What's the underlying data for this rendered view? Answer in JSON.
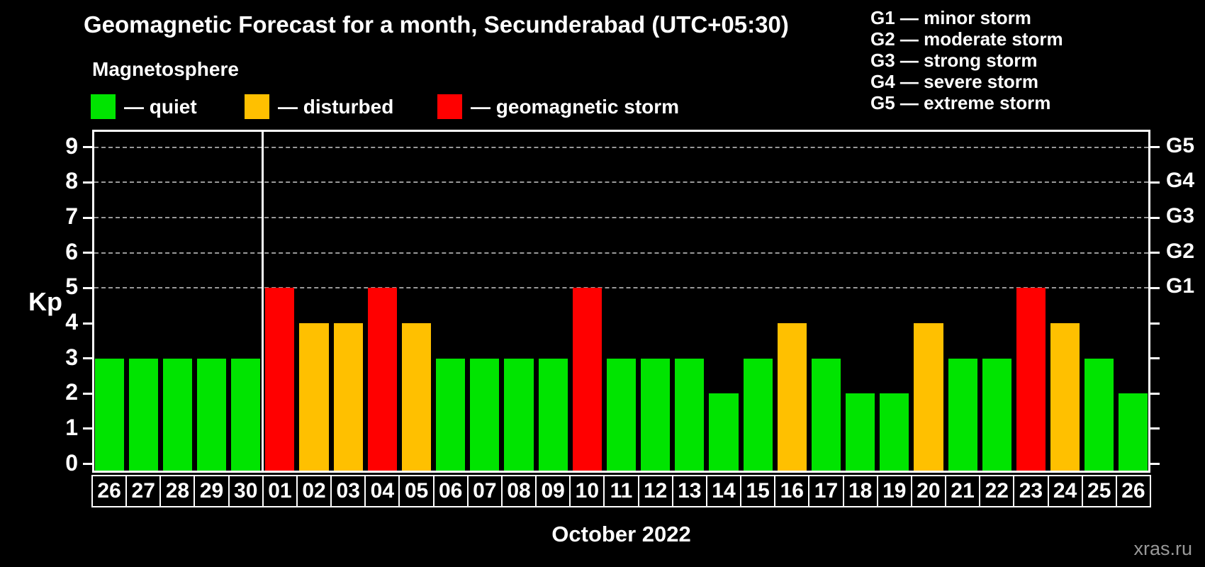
{
  "header": {
    "title": "Geomagnetic Forecast for a month, Secunderabad (UTC+05:30)",
    "subtitle": "Magnetosphere"
  },
  "status_legend": [
    {
      "key": "quiet",
      "color": "#00e400",
      "label": "— quiet"
    },
    {
      "key": "disturbed",
      "color": "#ffc000",
      "label": "— disturbed"
    },
    {
      "key": "storm",
      "color": "#ff0000",
      "label": "— geomagnetic storm"
    }
  ],
  "g_scale_legend": [
    "G1 — minor storm",
    "G2 — moderate storm",
    "G3 — strong storm",
    "G4 — severe storm",
    "G5 — extreme storm"
  ],
  "chart_data": {
    "type": "bar",
    "title": "Geomagnetic Forecast for a month, Secunderabad (UTC+05:30)",
    "ylabel": "Kp",
    "xlabel": "October 2022",
    "ylim": [
      -0.25,
      9.5
    ],
    "yticks": [
      0,
      1,
      2,
      3,
      4,
      5,
      6,
      7,
      8,
      9
    ],
    "grid_levels": [
      5,
      6,
      7,
      8,
      9
    ],
    "grid": "dashed, only at storm levels G1–G5",
    "legend_position": "top",
    "right_axis": [
      {
        "level": 5,
        "label": "G1"
      },
      {
        "level": 6,
        "label": "G2"
      },
      {
        "level": 7,
        "label": "G3"
      },
      {
        "level": 8,
        "label": "G4"
      },
      {
        "level": 9,
        "label": "G5"
      }
    ],
    "month_separator_after_index": 4,
    "colors": {
      "quiet": "#00e400",
      "disturbed": "#ffc000",
      "storm": "#ff0000"
    },
    "categories": [
      "26",
      "27",
      "28",
      "29",
      "30",
      "01",
      "02",
      "03",
      "04",
      "05",
      "06",
      "07",
      "08",
      "09",
      "10",
      "11",
      "12",
      "13",
      "14",
      "15",
      "16",
      "17",
      "18",
      "19",
      "20",
      "21",
      "22",
      "23",
      "24",
      "25",
      "26"
    ],
    "values": [
      3,
      3,
      3,
      3,
      3,
      5,
      4,
      4,
      5,
      4,
      3,
      3,
      3,
      3,
      5,
      3,
      3,
      3,
      2,
      3,
      4,
      3,
      2,
      2,
      4,
      3,
      3,
      5,
      4,
      3,
      2
    ],
    "statuses": [
      "quiet",
      "quiet",
      "quiet",
      "quiet",
      "quiet",
      "storm",
      "disturbed",
      "disturbed",
      "storm",
      "disturbed",
      "quiet",
      "quiet",
      "quiet",
      "quiet",
      "storm",
      "quiet",
      "quiet",
      "quiet",
      "quiet",
      "quiet",
      "disturbed",
      "quiet",
      "quiet",
      "quiet",
      "disturbed",
      "quiet",
      "quiet",
      "storm",
      "disturbed",
      "quiet",
      "quiet"
    ]
  },
  "footer": {
    "month_label": "October 2022",
    "watermark": "xras.ru"
  }
}
